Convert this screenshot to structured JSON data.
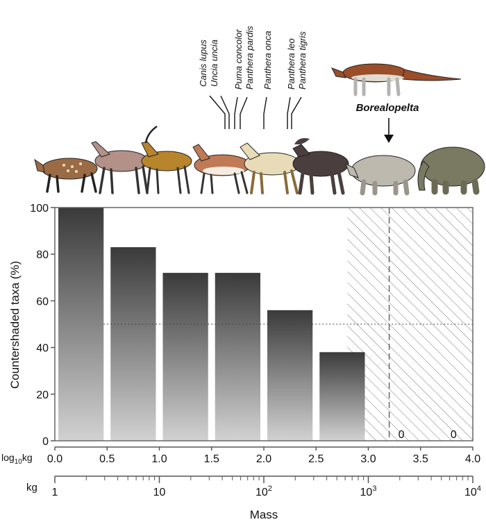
{
  "chart_data": {
    "type": "bar",
    "ylabel": "Countershaded taxa (%)",
    "xlabel": "Mass",
    "ylim": [
      0,
      100
    ],
    "yticks": [
      0,
      20,
      40,
      60,
      80,
      100
    ],
    "log_axis": {
      "label": "log",
      "label_sub": "10",
      "label_unit": "kg",
      "ticks": [
        "0.0",
        "0.5",
        "1.0",
        "1.5",
        "2.0",
        "2.5",
        "3.0",
        "3.5",
        "4.0"
      ]
    },
    "kg_axis": {
      "label": "kg",
      "ticks": [
        {
          "base": "1",
          "exp": ""
        },
        {
          "base": "10",
          "exp": ""
        },
        {
          "base": "10",
          "exp": "2"
        },
        {
          "base": "10",
          "exp": "3"
        },
        {
          "base": "10",
          "exp": "4"
        }
      ]
    },
    "bins": [
      {
        "start": 0.0,
        "end": 0.5,
        "value": 100
      },
      {
        "start": 0.5,
        "end": 1.0,
        "value": 83
      },
      {
        "start": 1.0,
        "end": 1.5,
        "value": 72
      },
      {
        "start": 1.5,
        "end": 2.0,
        "value": 72
      },
      {
        "start": 2.0,
        "end": 2.5,
        "value": 56
      },
      {
        "start": 2.5,
        "end": 3.0,
        "value": 38
      }
    ],
    "zero_bins": [
      {
        "label": "0",
        "at_log": 3.25
      },
      {
        "label": "0",
        "at_log": 3.75
      }
    ],
    "reference_line": 50,
    "hatched_region": {
      "from_log": 2.8,
      "to_log": 4.0
    },
    "species_labels": [
      "Canis lupus",
      "Uncia uncia",
      "Puma concolor",
      "Panthera pardis",
      "Panthera onca",
      "Panthera leo",
      "Panthera tigris"
    ],
    "highlight_label": "Borealopelta",
    "highlight_log": 3.2
  },
  "colors": {
    "bar_top": "#3a3a3a",
    "bar_bottom": "#d2d2d2",
    "axis": "#555555"
  }
}
